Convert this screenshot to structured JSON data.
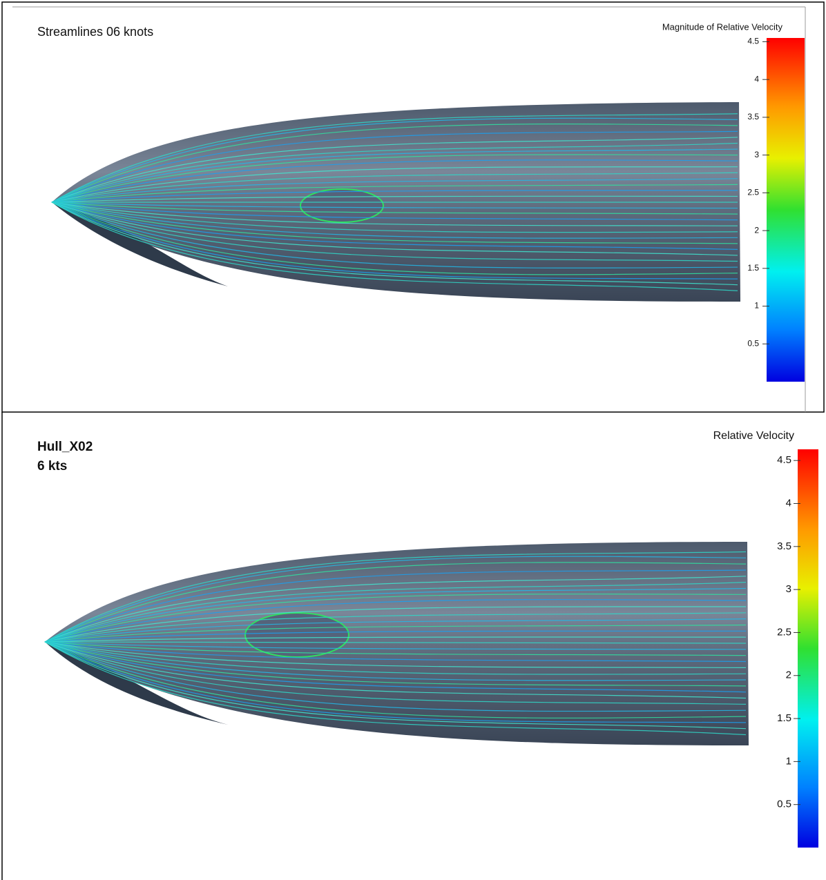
{
  "panels": [
    {
      "title": "Streamlines 06 knots",
      "legend": {
        "title": "Magnitude of Relative Velocity",
        "range": [
          0,
          4.55
        ],
        "ticks": [
          4.5,
          4,
          3.5,
          3,
          2.5,
          2,
          1.5,
          1,
          0.5
        ]
      }
    },
    {
      "title": [
        "Hull_X02",
        "6 kts"
      ],
      "legend": {
        "title": "Relative Velocity",
        "range": [
          0,
          4.63
        ],
        "ticks": [
          4.5,
          4,
          3.5,
          3,
          2.5,
          2,
          1.5,
          1,
          0.5
        ]
      }
    }
  ]
}
